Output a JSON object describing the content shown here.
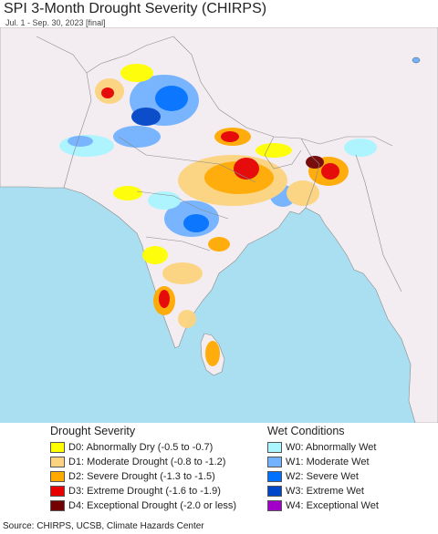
{
  "header": {
    "title": "SPI 3-Month Drought Severity (CHIRPS)",
    "subtitle": "Jul. 1 - Sep. 30, 2023 [final]"
  },
  "map": {
    "region": "South Asia",
    "colors": {
      "ocean": "#a9dff0",
      "land": "#f3edf1",
      "border": "#8a8a8a"
    }
  },
  "legend": {
    "drought_heading": "Drought Severity",
    "wet_heading": "Wet Conditions",
    "drought": [
      {
        "label": "D0: Abnormally Dry (-0.5 to -0.7)",
        "color": "#ffff00"
      },
      {
        "label": "D1: Moderate Drought (-0.8 to -1.2)",
        "color": "#fcd37f"
      },
      {
        "label": "D2: Severe Drought (-1.3 to -1.5)",
        "color": "#ffaa00"
      },
      {
        "label": "D3: Extreme Drought (-1.6 to -1.9)",
        "color": "#e60000"
      },
      {
        "label": "D4: Exceptional Drought (-2.0 or less)",
        "color": "#730000"
      }
    ],
    "wet": [
      {
        "label": "W0: Abnormally Wet",
        "color": "#aaf5ff"
      },
      {
        "label": "W1: Moderate Wet",
        "color": "#73b2ff"
      },
      {
        "label": "W2: Severe Wet",
        "color": "#0070ff"
      },
      {
        "label": "W3: Extreme Wet",
        "color": "#0046c8"
      },
      {
        "label": "W4: Exceptional Wet",
        "color": "#a000c8"
      }
    ]
  },
  "footer": {
    "source": "Source: CHIRPS, UCSB, Climate Hazards Center"
  }
}
